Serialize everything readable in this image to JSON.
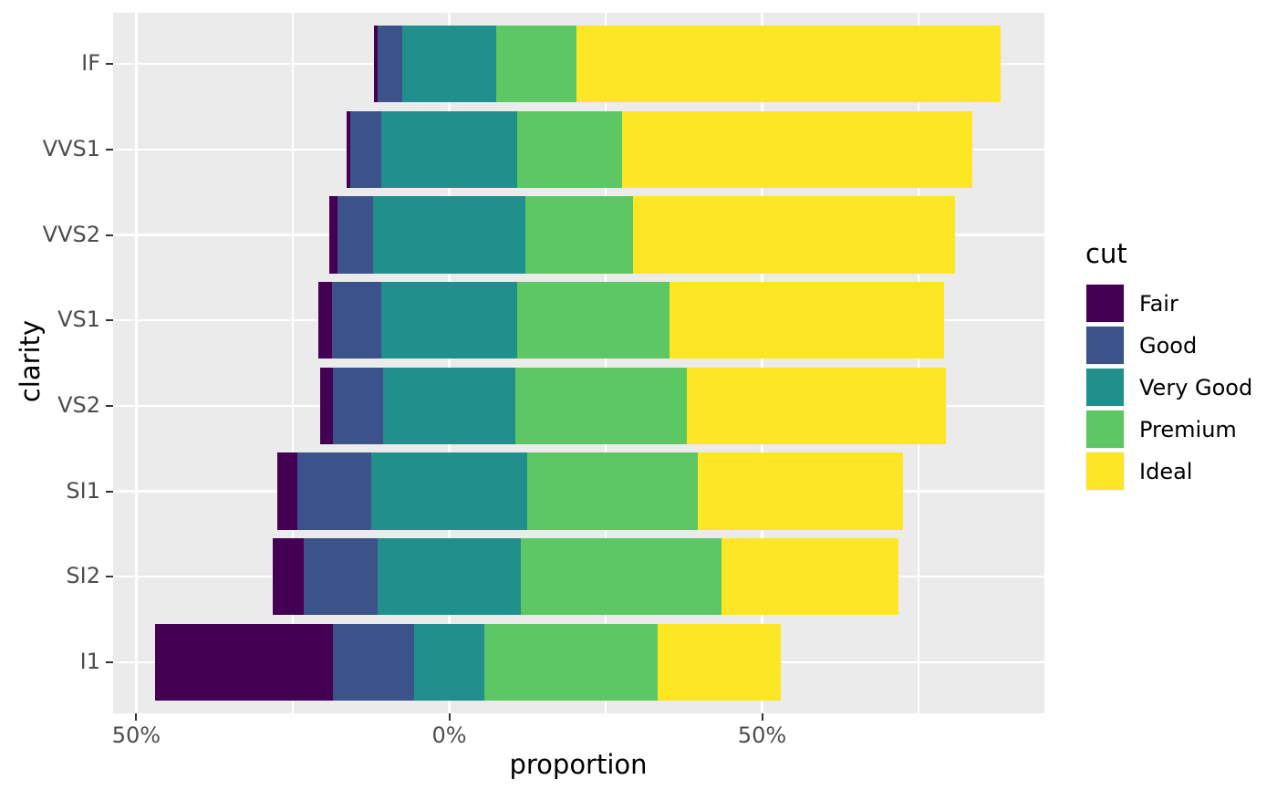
{
  "chart_data": {
    "type": "bar",
    "variant": "horizontal-diverging-stacked-likert",
    "title": "",
    "xlabel": "proportion",
    "ylabel": "clarity",
    "categories": [
      "IF",
      "VVS1",
      "VVS2",
      "VS1",
      "VS2",
      "SI1",
      "SI2",
      "I1"
    ],
    "series": [
      {
        "name": "Fair",
        "color": "#440154",
        "values": [
          0.5,
          0.47,
          1.36,
          2.08,
          2.13,
          3.12,
          5.07,
          28.34
        ]
      },
      {
        "name": "Good",
        "color": "#3B528B",
        "values": [
          3.97,
          5.09,
          5.65,
          7.93,
          7.98,
          11.94,
          11.76,
          12.96
        ]
      },
      {
        "name": "Very Good",
        "color": "#21908C",
        "values": [
          14.97,
          21.59,
          24.38,
          21.72,
          21.14,
          24.8,
          22.84,
          11.34
        ]
      },
      {
        "name": "Premium",
        "color": "#5DC863",
        "values": [
          12.85,
          16.85,
          17.17,
          24.34,
          27.39,
          27.36,
          32.08,
          27.66
        ]
      },
      {
        "name": "Ideal",
        "color": "#FDE725",
        "values": [
          67.71,
          56.01,
          51.44,
          43.92,
          41.37,
          32.77,
          28.26,
          19.7
        ]
      }
    ],
    "centering": "zero at midpoint of middle series (likert), values are % of row total",
    "x_ticks": [
      {
        "value": -50,
        "label": "50%"
      },
      {
        "value": 0,
        "label": "0%"
      },
      {
        "value": 50,
        "label": "50%"
      }
    ],
    "x_minor_ticks": [
      -25,
      25,
      75
    ],
    "xlim": [
      -53.7,
      95.2
    ],
    "legend": {
      "title": "cut",
      "position": "right",
      "entries": [
        {
          "label": "Fair",
          "color": "#440154"
        },
        {
          "label": "Good",
          "color": "#3B528B"
        },
        {
          "label": "Very Good",
          "color": "#21908C"
        },
        {
          "label": "Premium",
          "color": "#5DC863"
        },
        {
          "label": "Ideal",
          "color": "#FDE725"
        }
      ]
    },
    "grid": "white major and minor gridlines on grey panel"
  },
  "colors": {
    "panel_background": "#EBEBEB",
    "page_background": "#FFFFFF",
    "gridline": "#FFFFFF",
    "tick_mark": "#333333",
    "tick_label": "#4D4D4D",
    "axis_title": "#000000"
  }
}
